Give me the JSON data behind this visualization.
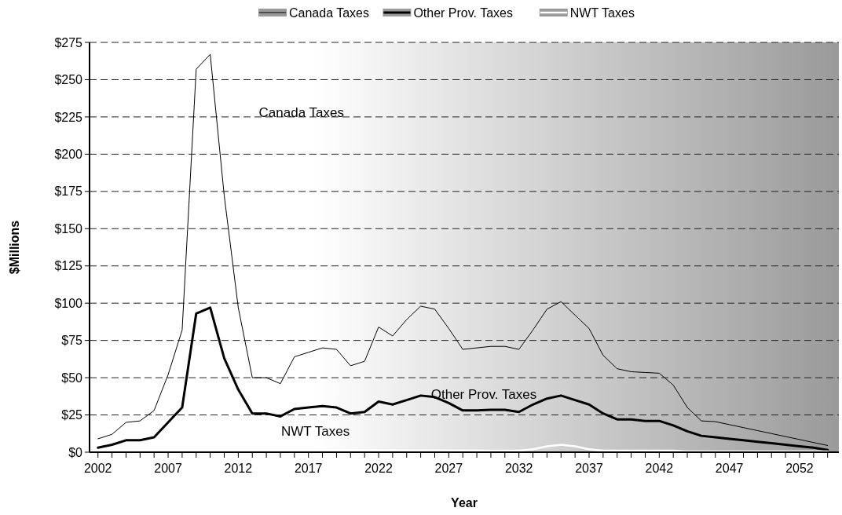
{
  "chart_data": {
    "type": "line",
    "xlabel": "Year",
    "ylabel": "$Millions",
    "x": [
      2002,
      2003,
      2004,
      2005,
      2006,
      2007,
      2008,
      2009,
      2010,
      2011,
      2012,
      2013,
      2014,
      2015,
      2016,
      2017,
      2018,
      2019,
      2020,
      2021,
      2022,
      2023,
      2024,
      2025,
      2026,
      2027,
      2028,
      2029,
      2030,
      2031,
      2032,
      2033,
      2034,
      2035,
      2036,
      2037,
      2038,
      2039,
      2040,
      2041,
      2042,
      2043,
      2044,
      2045,
      2046,
      2047,
      2048,
      2049,
      2050,
      2051,
      2052,
      2053,
      2054
    ],
    "series": [
      {
        "name": "Canada Taxes",
        "color": "#000000",
        "values": [
          9,
          12,
          20,
          21,
          28,
          52,
          82,
          257,
          267,
          172,
          97,
          50,
          50,
          46,
          64,
          67,
          70,
          69,
          58,
          61,
          84,
          78,
          89,
          98,
          96,
          83,
          69,
          70,
          71,
          71,
          69,
          82,
          96,
          101,
          92,
          83,
          65,
          56,
          54,
          53.5,
          53,
          45,
          30,
          21,
          20.5,
          18.5,
          16.5,
          14.5,
          12.5,
          10.5,
          8.5,
          6.5,
          4.5
        ]
      },
      {
        "name": "Other Prov. Taxes",
        "color": "#000000",
        "values": [
          3,
          5,
          8,
          8,
          10,
          20,
          30,
          93,
          97,
          63,
          42,
          26,
          26,
          24,
          29,
          30,
          31,
          30,
          26,
          27,
          34,
          32,
          35,
          38,
          37,
          33,
          28,
          28,
          28.5,
          28.5,
          27,
          32,
          36,
          38,
          35,
          32,
          26,
          22,
          22,
          21,
          21,
          18,
          14,
          11,
          10,
          9,
          8,
          7,
          6,
          5,
          4,
          3,
          1.5
        ]
      },
      {
        "name": "NWT Taxes",
        "color": "#ffffff",
        "values": [
          1,
          1,
          1,
          1,
          1,
          1,
          1,
          2,
          2,
          2,
          1,
          1,
          1,
          1,
          1,
          1,
          1,
          1,
          1,
          1,
          1,
          1,
          1,
          1,
          1,
          1,
          1,
          1,
          1,
          1,
          1,
          2,
          4,
          5,
          4,
          2,
          1,
          1,
          1,
          1,
          1,
          1,
          0.5,
          0.5,
          0.5,
          0.5,
          0.5,
          0.5,
          0.5,
          0.5,
          0.5,
          0.5,
          0.5
        ]
      }
    ],
    "xlim": [
      2001.4,
      2054.8
    ],
    "ylim": [
      0,
      275
    ],
    "xticks": [
      2002,
      {
        "value": 2003,
        "label": null
      },
      {
        "value": 2004,
        "label": null
      },
      {
        "value": 2005,
        "label": null
      },
      {
        "value": 2006,
        "label": null
      },
      2007,
      {
        "value": 2008,
        "label": null
      },
      {
        "value": 2009,
        "label": null
      },
      {
        "value": 2010,
        "label": null
      },
      {
        "value": 2011,
        "label": null
      },
      2012,
      {
        "value": 2013,
        "label": null
      },
      {
        "value": 2014,
        "label": null
      },
      {
        "value": 2015,
        "label": null
      },
      {
        "value": 2016,
        "label": null
      },
      2017,
      {
        "value": 2018,
        "label": null
      },
      {
        "value": 2019,
        "label": null
      },
      {
        "value": 2020,
        "label": null
      },
      {
        "value": 2021,
        "label": null
      },
      2022,
      {
        "value": 2023,
        "label": null
      },
      {
        "value": 2024,
        "label": null
      },
      {
        "value": 2025,
        "label": null
      },
      {
        "value": 2026,
        "label": null
      },
      2027,
      {
        "value": 2028,
        "label": null
      },
      {
        "value": 2029,
        "label": null
      },
      {
        "value": 2030,
        "label": null
      },
      {
        "value": 2031,
        "label": null
      },
      2032,
      {
        "value": 2033,
        "label": null
      },
      {
        "value": 2034,
        "label": null
      },
      {
        "value": 2035,
        "label": null
      },
      {
        "value": 2036,
        "label": null
      },
      2037,
      {
        "value": 2038,
        "label": null
      },
      {
        "value": 2039,
        "label": null
      },
      {
        "value": 2040,
        "label": null
      },
      {
        "value": 2041,
        "label": null
      },
      2042,
      {
        "value": 2043,
        "label": null
      },
      {
        "value": 2044,
        "label": null
      },
      {
        "value": 2045,
        "label": null
      },
      {
        "value": 2046,
        "label": null
      },
      2047,
      {
        "value": 2048,
        "label": null
      },
      {
        "value": 2049,
        "label": null
      },
      {
        "value": 2050,
        "label": null
      },
      {
        "value": 2051,
        "label": null
      },
      2052,
      {
        "value": 2053,
        "label": null
      },
      {
        "value": 2054,
        "label": null
      }
    ],
    "yticks": [
      {
        "value": 0,
        "label": "$0"
      },
      {
        "value": 25,
        "label": "$25"
      },
      {
        "value": 50,
        "label": "$50"
      },
      {
        "value": 75,
        "label": "$75"
      },
      {
        "value": 100,
        "label": "$100"
      },
      {
        "value": 125,
        "label": "$125"
      },
      {
        "value": 150,
        "label": "$150"
      },
      {
        "value": 175,
        "label": "$175"
      },
      {
        "value": 200,
        "label": "$200"
      },
      {
        "value": 225,
        "label": "$225"
      },
      {
        "value": 250,
        "label": "$250"
      },
      {
        "value": 275,
        "label": "$275"
      }
    ],
    "grid": "y",
    "legend": "top",
    "marker": "none",
    "annotations": [
      "Canada Taxes",
      "Other Prov. Taxes",
      "NWT Taxes"
    ]
  }
}
